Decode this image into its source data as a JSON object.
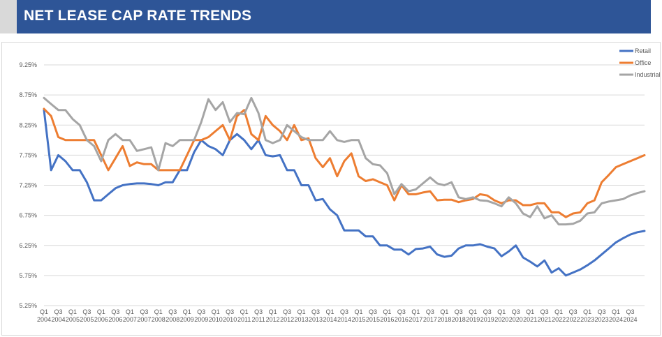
{
  "header": {
    "title": "NET LEASE CAP RATE TRENDS"
  },
  "colors": {
    "header_bg": "#2e5597",
    "retail": "#4472c4",
    "office": "#ed7d31",
    "industrial": "#a5a5a5"
  },
  "chart_data": {
    "type": "line",
    "ylim": [
      5.25,
      9.25
    ],
    "yticks": [
      "9.25%",
      "8.75%",
      "8.25%",
      "7.75%",
      "7.25%",
      "6.75%",
      "6.25%",
      "5.75%",
      "5.25%"
    ],
    "ytick_values": [
      9.25,
      8.75,
      8.25,
      7.75,
      7.25,
      6.75,
      6.25,
      5.75,
      5.25
    ],
    "grid": "horizontal",
    "legend_position": "top-right",
    "x_tick_labels": [
      [
        "Q1",
        "2004"
      ],
      [
        "Q3",
        "2004"
      ],
      [
        "Q1",
        "2005"
      ],
      [
        "Q3",
        "2005"
      ],
      [
        "Q1",
        "2006"
      ],
      [
        "Q3",
        "2006"
      ],
      [
        "Q1",
        "2007"
      ],
      [
        "Q3",
        "2007"
      ],
      [
        "Q1",
        "2008"
      ],
      [
        "Q3",
        "2008"
      ],
      [
        "Q1",
        "2009"
      ],
      [
        "Q3",
        "2009"
      ],
      [
        "Q1",
        "2010"
      ],
      [
        "Q3",
        "2010"
      ],
      [
        "Q1",
        "2011"
      ],
      [
        "Q3",
        "2011"
      ],
      [
        "Q1",
        "2012"
      ],
      [
        "Q3",
        "2012"
      ],
      [
        "Q1",
        "2013"
      ],
      [
        "Q3",
        "2013"
      ],
      [
        "Q1",
        "2014"
      ],
      [
        "Q3",
        "2014"
      ],
      [
        "Q1",
        "2015"
      ],
      [
        "Q3",
        "2015"
      ],
      [
        "Q1",
        "2016"
      ],
      [
        "Q3",
        "2016"
      ],
      [
        "Q1",
        "2017"
      ],
      [
        "Q3",
        "2017"
      ],
      [
        "Q1",
        "2018"
      ],
      [
        "Q3",
        "2018"
      ],
      [
        "Q1",
        "2019"
      ],
      [
        "Q3",
        "2019"
      ],
      [
        "Q1",
        "2020"
      ],
      [
        "Q3",
        "2020"
      ],
      [
        "Q1",
        "2021"
      ],
      [
        "Q3",
        "2021"
      ],
      [
        "Q1",
        "2022"
      ],
      [
        "Q3",
        "2022"
      ],
      [
        "Q1",
        "2023"
      ],
      [
        "Q3",
        "2023"
      ],
      [
        "Q1",
        "2024"
      ],
      [
        "Q3",
        "2024"
      ]
    ],
    "series": [
      {
        "name": "Retail",
        "color": "#4472c4",
        "values": [
          8.5,
          7.5,
          7.75,
          7.65,
          7.5,
          7.5,
          7.3,
          7.0,
          7.0,
          7.1,
          7.2,
          7.25,
          7.27,
          7.28,
          7.28,
          7.27,
          7.25,
          7.3,
          7.3,
          7.5,
          7.5,
          7.8,
          8.0,
          7.9,
          7.85,
          7.75,
          8.0,
          8.1,
          8.0,
          7.85,
          8.0,
          7.75,
          7.73,
          7.75,
          7.5,
          7.5,
          7.25,
          7.25,
          7.0,
          7.02,
          6.85,
          6.75,
          6.5,
          6.5,
          6.5,
          6.4,
          6.4,
          6.25,
          6.25,
          6.18,
          6.18,
          6.1,
          6.19,
          6.2,
          6.23,
          6.1,
          6.06,
          6.08,
          6.2,
          6.25,
          6.25,
          6.27,
          6.23,
          6.2,
          6.07,
          6.15,
          6.25,
          6.05,
          5.98,
          5.9,
          6.0,
          5.8,
          5.87,
          5.75,
          5.8,
          5.85,
          5.92,
          6.0,
          6.1,
          6.2,
          6.3,
          6.37,
          6.43,
          6.47,
          6.49
        ]
      },
      {
        "name": "Office",
        "color": "#ed7d31",
        "values": [
          8.52,
          8.4,
          8.05,
          8.0,
          8.0,
          8.0,
          8.0,
          8.0,
          7.75,
          7.5,
          7.7,
          7.9,
          7.57,
          7.63,
          7.6,
          7.6,
          7.5,
          7.5,
          7.5,
          7.5,
          7.75,
          8.0,
          8.0,
          8.05,
          8.15,
          8.25,
          8.0,
          8.4,
          8.5,
          8.1,
          8.0,
          8.4,
          8.25,
          8.15,
          8.0,
          8.25,
          8.0,
          8.03,
          7.7,
          7.55,
          7.7,
          7.4,
          7.65,
          7.78,
          7.4,
          7.32,
          7.35,
          7.3,
          7.25,
          7.0,
          7.25,
          7.1,
          7.1,
          7.13,
          7.15,
          7.0,
          7.01,
          7.01,
          6.97,
          7.0,
          7.02,
          7.1,
          7.08,
          7.0,
          6.95,
          7.0,
          7.0,
          6.92,
          6.92,
          6.95,
          6.95,
          6.8,
          6.8,
          6.72,
          6.78,
          6.8,
          6.95,
          7.0,
          7.3,
          7.42,
          7.55,
          7.6,
          7.65,
          7.7,
          7.75
        ]
      },
      {
        "name": "Industrial",
        "color": "#a5a5a5",
        "values": [
          8.7,
          8.6,
          8.5,
          8.5,
          8.35,
          8.25,
          8.0,
          7.9,
          7.65,
          8.0,
          8.1,
          8.0,
          8.0,
          7.82,
          7.85,
          7.88,
          7.5,
          7.95,
          7.9,
          8.0,
          8.0,
          8.0,
          8.3,
          8.68,
          8.5,
          8.63,
          8.3,
          8.45,
          8.43,
          8.7,
          8.45,
          8.0,
          7.95,
          8.0,
          8.25,
          8.15,
          8.05,
          8.0,
          8.0,
          8.0,
          8.15,
          8.0,
          7.97,
          8.0,
          8.0,
          7.7,
          7.6,
          7.58,
          7.45,
          7.1,
          7.27,
          7.15,
          7.18,
          7.28,
          7.38,
          7.28,
          7.25,
          7.3,
          7.05,
          7.02,
          7.05,
          7.0,
          6.99,
          6.95,
          6.9,
          7.05,
          6.95,
          6.78,
          6.72,
          6.9,
          6.7,
          6.75,
          6.6,
          6.6,
          6.61,
          6.66,
          6.78,
          6.8,
          6.95,
          6.98,
          7.0,
          7.02,
          7.08,
          7.12,
          7.15
        ]
      }
    ]
  }
}
